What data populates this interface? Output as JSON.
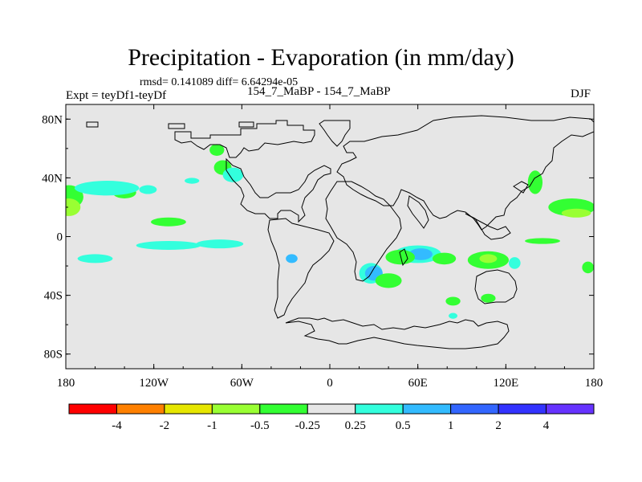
{
  "chart_data": {
    "type": "heatmap",
    "title": "Precipitation - Evaporation (in mm/day)",
    "stats_line": "rmsd= 0.141089 diff= 6.64294e-05",
    "left_label": "Expt = teyDf1-teyDf",
    "center_label": "154_7_MaBP - 154_7_MaBP",
    "right_label": "DJF",
    "x_range": [
      -180,
      180
    ],
    "y_range": [
      -90,
      90
    ],
    "x_ticks": [
      {
        "value": -180,
        "label": "180"
      },
      {
        "value": -120,
        "label": "120W"
      },
      {
        "value": -60,
        "label": "60W"
      },
      {
        "value": 0,
        "label": "0"
      },
      {
        "value": 60,
        "label": "60E"
      },
      {
        "value": 120,
        "label": "120E"
      },
      {
        "value": 180,
        "label": "180"
      }
    ],
    "y_ticks": [
      {
        "value": 80,
        "label": "80N"
      },
      {
        "value": 40,
        "label": "40N"
      },
      {
        "value": 0,
        "label": "0"
      },
      {
        "value": -40,
        "label": "40S"
      },
      {
        "value": -80,
        "label": "80S"
      }
    ],
    "colorbar": {
      "colors": [
        "#ff0000",
        "#ff8000",
        "#e6e600",
        "#99ff33",
        "#33ff33",
        "#e6e6e6",
        "#33ffdd",
        "#33bbff",
        "#3366ff",
        "#3333ff",
        "#6633ff"
      ],
      "labels": [
        "-4",
        "-2",
        "-1",
        "-0.5",
        "-0.25",
        "0.25",
        "0.5",
        "1",
        "2",
        "4"
      ]
    },
    "anomaly_regions": [
      {
        "class": "-0.25",
        "lon": -178,
        "lat": 27,
        "w": 10,
        "h": 8
      },
      {
        "class": "-0.5",
        "lon": -178,
        "lat": 20,
        "w": 8,
        "h": 6
      },
      {
        "class": "-0.25",
        "lon": -140,
        "lat": 30,
        "w": 8,
        "h": 4
      },
      {
        "class": "0.25",
        "lon": -152,
        "lat": 33,
        "w": 22,
        "h": 5
      },
      {
        "class": "0.25",
        "lon": -124,
        "lat": 32,
        "w": 6,
        "h": 3
      },
      {
        "class": "-0.25",
        "lon": -110,
        "lat": 10,
        "w": 12,
        "h": 3
      },
      {
        "class": "0.25",
        "lon": -160,
        "lat": -15,
        "w": 12,
        "h": 3
      },
      {
        "class": "0.25",
        "lon": -110,
        "lat": -6,
        "w": 22,
        "h": 3
      },
      {
        "class": "0.25",
        "lon": -75,
        "lat": -5,
        "w": 16,
        "h": 3
      },
      {
        "class": "-0.25",
        "lon": -77,
        "lat": 59,
        "w": 5,
        "h": 4
      },
      {
        "class": "-0.25",
        "lon": -73,
        "lat": 47,
        "w": 6,
        "h": 5
      },
      {
        "class": "0.25",
        "lon": -66,
        "lat": 42,
        "w": 7,
        "h": 5
      },
      {
        "class": "0.25",
        "lon": -94,
        "lat": 38,
        "w": 5,
        "h": 2
      },
      {
        "class": "0.5",
        "lon": -26,
        "lat": -15,
        "w": 4,
        "h": 3
      },
      {
        "class": "0.25",
        "lon": 28,
        "lat": -25,
        "w": 8,
        "h": 7
      },
      {
        "class": "0.5",
        "lon": 30,
        "lat": -25,
        "w": 6,
        "h": 5
      },
      {
        "class": "-0.25",
        "lon": 40,
        "lat": -30,
        "w": 9,
        "h": 5
      },
      {
        "class": "0.25",
        "lon": 60,
        "lat": -12,
        "w": 16,
        "h": 6
      },
      {
        "class": "0.5",
        "lon": 62,
        "lat": -12,
        "w": 8,
        "h": 4
      },
      {
        "class": "-0.25",
        "lon": 48,
        "lat": -14,
        "w": 10,
        "h": 5
      },
      {
        "class": "-0.25",
        "lon": 78,
        "lat": -15,
        "w": 8,
        "h": 4
      },
      {
        "class": "-0.25",
        "lon": 108,
        "lat": -16,
        "w": 14,
        "h": 6
      },
      {
        "class": "-0.5",
        "lon": 108,
        "lat": -15,
        "w": 6,
        "h": 3
      },
      {
        "class": "0.25",
        "lon": 126,
        "lat": -18,
        "w": 4,
        "h": 4
      },
      {
        "class": "-0.25",
        "lon": 176,
        "lat": -21,
        "w": 4,
        "h": 4
      },
      {
        "class": "-0.25",
        "lon": 140,
        "lat": 37,
        "w": 5,
        "h": 8
      },
      {
        "class": "-0.25",
        "lon": 165,
        "lat": 20,
        "w": 16,
        "h": 6
      },
      {
        "class": "-0.5",
        "lon": 168,
        "lat": 16,
        "w": 10,
        "h": 3
      },
      {
        "class": "-0.25",
        "lon": 145,
        "lat": -3,
        "w": 12,
        "h": 2
      },
      {
        "class": "-0.25",
        "lon": 84,
        "lat": -44,
        "w": 5,
        "h": 3
      },
      {
        "class": "-0.25",
        "lon": 108,
        "lat": -42,
        "w": 5,
        "h": 3
      },
      {
        "class": "0.25",
        "lon": 84,
        "lat": -54,
        "w": 3,
        "h": 2
      }
    ]
  }
}
